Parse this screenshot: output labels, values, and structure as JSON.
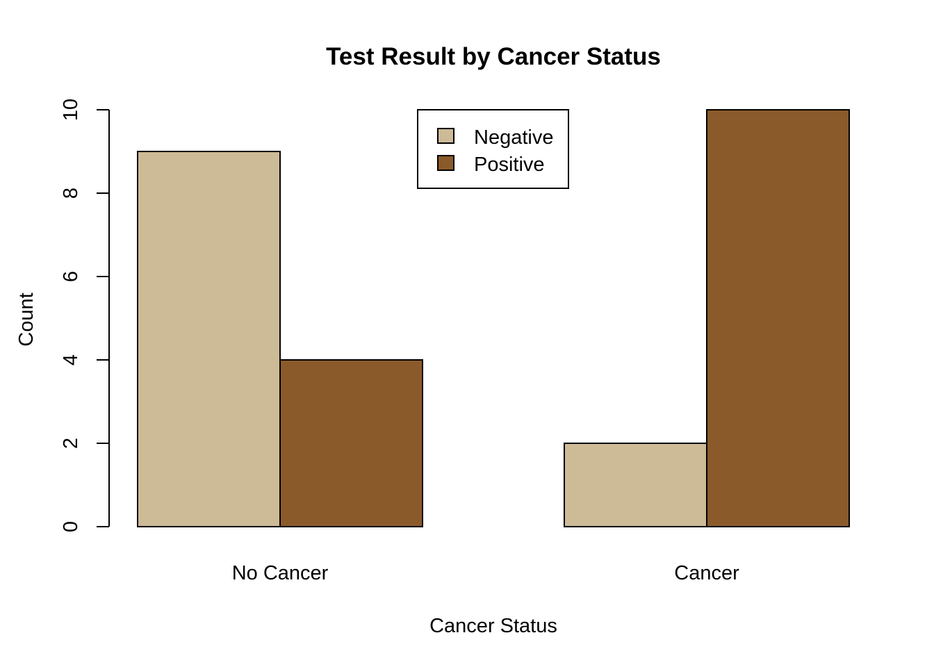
{
  "chart_data": {
    "type": "bar",
    "mode": "grouped",
    "title": "Test Result by Cancer Status",
    "xlabel": "Cancer Status",
    "ylabel": "Count",
    "categories": [
      "No Cancer",
      "Cancer"
    ],
    "series": [
      {
        "name": "Negative",
        "values": [
          9,
          2
        ],
        "color": "#CDBA96"
      },
      {
        "name": "Positive",
        "values": [
          4,
          10
        ],
        "color": "#8B5A2B"
      }
    ],
    "ylim": [
      0,
      10
    ],
    "yticks": [
      0,
      2,
      4,
      6,
      8,
      10
    ],
    "grid": false,
    "legend_position": "top-center"
  }
}
